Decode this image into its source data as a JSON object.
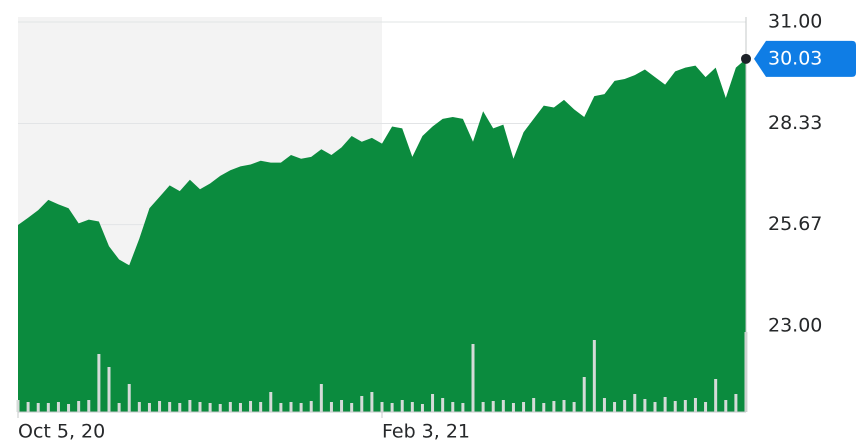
{
  "chart_data": {
    "type": "area",
    "categories": [
      "Oct 5, 20",
      null,
      null,
      null,
      null,
      null,
      null,
      null,
      null,
      null,
      null,
      null,
      null,
      null,
      null,
      null,
      null,
      null,
      null,
      null,
      null,
      null,
      null,
      null,
      null,
      null,
      null,
      null,
      null,
      null,
      null,
      null,
      null,
      null,
      null,
      null,
      "Feb 3, 21",
      null,
      null,
      null,
      null,
      null,
      null,
      null,
      null,
      null,
      null,
      null,
      null,
      null,
      null,
      null,
      null,
      null,
      null,
      null,
      null,
      null,
      null,
      null,
      null,
      null,
      null,
      null,
      null,
      null,
      null,
      null,
      null,
      null,
      null,
      null,
      null
    ],
    "series": [
      {
        "color": "#0b8b3e",
        "values": [
          25.66,
          25.85,
          26.05,
          26.32,
          26.2,
          26.1,
          25.7,
          25.8,
          25.75,
          25.1,
          24.75,
          24.6,
          25.3,
          26.1,
          26.4,
          26.7,
          26.55,
          26.85,
          26.6,
          26.75,
          26.95,
          27.1,
          27.2,
          27.25,
          27.35,
          27.3,
          27.3,
          27.5,
          27.4,
          27.45,
          27.65,
          27.5,
          27.7,
          28.0,
          27.85,
          27.95,
          27.8,
          28.25,
          28.2,
          27.45,
          28.0,
          28.25,
          28.45,
          28.5,
          28.45,
          27.85,
          28.65,
          28.2,
          28.3,
          27.4,
          28.1,
          28.45,
          28.8,
          28.75,
          28.95,
          28.7,
          28.5,
          29.05,
          29.1,
          29.45,
          29.5,
          29.6,
          29.75,
          29.55,
          29.35,
          29.7,
          29.8,
          29.85,
          29.55,
          29.8,
          29.0,
          29.8,
          30.03
        ]
      }
    ],
    "volume": {
      "color": "#d5dbd8",
      "values": [
        12,
        10,
        9,
        9,
        10,
        8,
        11,
        12,
        58,
        45,
        9,
        28,
        10,
        9,
        11,
        10,
        9,
        12,
        10,
        9,
        8,
        10,
        9,
        11,
        10,
        20,
        9,
        10,
        9,
        11,
        28,
        10,
        12,
        9,
        16,
        20,
        10,
        9,
        12,
        10,
        8,
        18,
        14,
        10,
        9,
        68,
        10,
        11,
        12,
        9,
        10,
        14,
        9,
        11,
        12,
        10,
        35,
        72,
        14,
        10,
        12,
        18,
        13,
        10,
        15,
        11,
        12,
        14,
        10,
        33,
        12,
        18,
        80
      ]
    },
    "ylim": [
      20.74,
      31.13
    ],
    "yticks": [
      {
        "value": 31,
        "label": "31.00"
      },
      28.33,
      25.67,
      {
        "value": 23,
        "label": "23.00"
      }
    ],
    "grid": true
  }
}
